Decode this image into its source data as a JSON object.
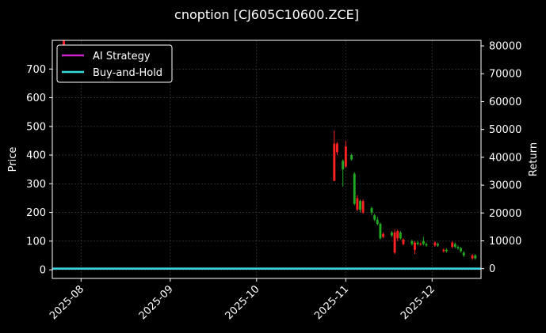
{
  "chart_data": {
    "type": "candlestick",
    "title": "cnoption [CJ605C10600.ZCE]",
    "ylabel_left": "Price",
    "ylabel_right": "Return",
    "ylim_left": [
      -30,
      800
    ],
    "ylim_right": [
      -3500,
      82000
    ],
    "xlim": [
      "2025-07-22",
      "2025-12-18"
    ],
    "left_ticks": [
      0,
      100,
      200,
      300,
      400,
      500,
      600,
      700
    ],
    "right_ticks": [
      0,
      10000,
      20000,
      30000,
      40000,
      50000,
      60000,
      70000,
      80000
    ],
    "x_ticks": [
      {
        "date": "2025-08-01",
        "label": "2025-08"
      },
      {
        "date": "2025-09-01",
        "label": "2025-09"
      },
      {
        "date": "2025-10-01",
        "label": "2025-10"
      },
      {
        "date": "2025-11-01",
        "label": "2025-11"
      },
      {
        "date": "2025-12-01",
        "label": "2025-12"
      }
    ],
    "grid": true,
    "legend_placement": "top-left",
    "series": [
      {
        "name": "AI Strategy",
        "color": "#cc22cc",
        "kind": "return_line",
        "values_description": "flat near 0 across period"
      },
      {
        "name": "Buy-and-Hold",
        "color": "#33dddd",
        "kind": "return_line",
        "values_description": "flat near 0 across period"
      }
    ],
    "strategy_level": 0,
    "buyhold_level": 0,
    "candles": [
      {
        "date": "2025-07-26",
        "open": 780,
        "close": 800,
        "low": 780,
        "high": 800
      },
      {
        "date": "2025-10-28",
        "open": 310,
        "close": 440,
        "low": 310,
        "high": 485
      },
      {
        "date": "2025-10-29",
        "open": 410,
        "close": 440,
        "low": 400,
        "high": 445
      },
      {
        "date": "2025-10-31",
        "open": 380,
        "close": 350,
        "low": 290,
        "high": 385
      },
      {
        "date": "2025-11-01",
        "open": 360,
        "close": 430,
        "low": 355,
        "high": 450
      },
      {
        "date": "2025-11-03",
        "open": 400,
        "close": 385,
        "low": 380,
        "high": 405
      },
      {
        "date": "2025-11-04",
        "open": 335,
        "close": 230,
        "low": 225,
        "high": 340
      },
      {
        "date": "2025-11-05",
        "open": 210,
        "close": 250,
        "low": 205,
        "high": 260
      },
      {
        "date": "2025-11-06",
        "open": 240,
        "close": 210,
        "low": 200,
        "high": 245
      },
      {
        "date": "2025-11-07",
        "open": 200,
        "close": 240,
        "low": 195,
        "high": 245
      },
      {
        "date": "2025-11-10",
        "open": 215,
        "close": 200,
        "low": 190,
        "high": 220
      },
      {
        "date": "2025-11-11",
        "open": 190,
        "close": 175,
        "low": 170,
        "high": 195
      },
      {
        "date": "2025-11-12",
        "open": 175,
        "close": 160,
        "low": 155,
        "high": 185
      },
      {
        "date": "2025-11-13",
        "open": 160,
        "close": 110,
        "low": 105,
        "high": 165
      },
      {
        "date": "2025-11-14",
        "open": 115,
        "close": 125,
        "low": 110,
        "high": 130
      },
      {
        "date": "2025-11-17",
        "open": 130,
        "close": 120,
        "low": 115,
        "high": 135
      },
      {
        "date": "2025-11-18",
        "open": 60,
        "close": 130,
        "low": 55,
        "high": 140
      },
      {
        "date": "2025-11-19",
        "open": 110,
        "close": 135,
        "low": 100,
        "high": 140
      },
      {
        "date": "2025-11-20",
        "open": 130,
        "close": 110,
        "low": 105,
        "high": 135
      },
      {
        "date": "2025-11-21",
        "open": 90,
        "close": 105,
        "low": 85,
        "high": 110
      },
      {
        "date": "2025-11-24",
        "open": 100,
        "close": 90,
        "low": 85,
        "high": 105
      },
      {
        "date": "2025-11-25",
        "open": 70,
        "close": 95,
        "low": 55,
        "high": 100
      },
      {
        "date": "2025-11-26",
        "open": 95,
        "close": 90,
        "low": 85,
        "high": 100
      },
      {
        "date": "2025-11-27",
        "open": 90,
        "close": 90,
        "low": 85,
        "high": 95
      },
      {
        "date": "2025-11-28",
        "open": 100,
        "close": 90,
        "low": 85,
        "high": 115
      },
      {
        "date": "2025-11-29",
        "open": 90,
        "close": 85,
        "low": 80,
        "high": 95
      },
      {
        "date": "2025-12-02",
        "open": 85,
        "close": 95,
        "low": 80,
        "high": 100
      },
      {
        "date": "2025-12-03",
        "open": 90,
        "close": 85,
        "low": 80,
        "high": 95
      },
      {
        "date": "2025-12-05",
        "open": 65,
        "close": 70,
        "low": 60,
        "high": 75
      },
      {
        "date": "2025-12-06",
        "open": 70,
        "close": 65,
        "low": 60,
        "high": 75
      },
      {
        "date": "2025-12-08",
        "open": 80,
        "close": 95,
        "low": 75,
        "high": 100
      },
      {
        "date": "2025-12-09",
        "open": 90,
        "close": 80,
        "low": 75,
        "high": 95
      },
      {
        "date": "2025-12-10",
        "open": 80,
        "close": 75,
        "low": 70,
        "high": 85
      },
      {
        "date": "2025-12-11",
        "open": 75,
        "close": 65,
        "low": 60,
        "high": 80
      },
      {
        "date": "2025-12-12",
        "open": 60,
        "close": 50,
        "low": 45,
        "high": 65
      },
      {
        "date": "2025-12-15",
        "open": 40,
        "close": 50,
        "low": 35,
        "high": 55
      },
      {
        "date": "2025-12-16",
        "open": 50,
        "close": 40,
        "low": 35,
        "high": 55
      }
    ],
    "colors": {
      "up": "#ff2222",
      "down": "#22aa22",
      "background": "#000000",
      "grid": "#444444"
    }
  }
}
